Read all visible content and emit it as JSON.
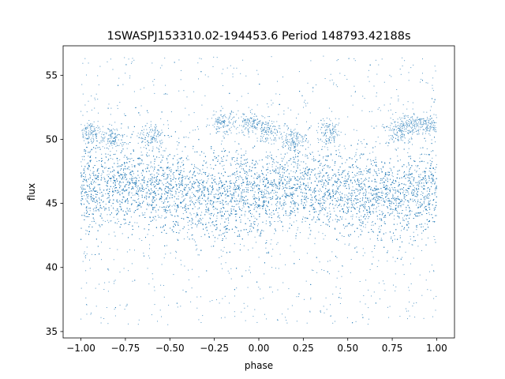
{
  "chart_data": {
    "type": "scatter",
    "title": "1SWASPJ153310.02-194453.6 Period 148793.42188s",
    "xlabel": "phase",
    "ylabel": "flux",
    "xlim": [
      -1.1,
      1.1
    ],
    "ylim": [
      34.5,
      57.3
    ],
    "x_ticks": [
      -1.0,
      -0.75,
      -0.5,
      -0.25,
      0.0,
      0.25,
      0.5,
      0.75,
      1.0
    ],
    "x_tick_labels": [
      "−1.00",
      "−0.75",
      "−0.50",
      "−0.25",
      "0.00",
      "0.25",
      "0.50",
      "0.75",
      "1.00"
    ],
    "y_ticks": [
      35,
      40,
      45,
      50,
      55
    ],
    "y_tick_labels": [
      "35",
      "40",
      "45",
      "50",
      "55"
    ],
    "grid": false,
    "legend": "none",
    "point_color": "#1f77b4",
    "series": [
      {
        "phase_range": [
          -1.0,
          1.0
        ],
        "flux_range": [
          35.5,
          56.5
        ],
        "mean_flux_profile": {
          "phase": [
            -1.0,
            -0.75,
            -0.5,
            -0.25,
            0.0,
            0.25,
            0.5,
            0.75,
            1.0
          ],
          "flux": [
            46.2,
            46.6,
            46.1,
            45.2,
            45.9,
            46.4,
            45.8,
            45.6,
            46.0
          ]
        },
        "core_spread": 1.6,
        "upper_clumps": [
          {
            "phase": -0.95,
            "flux": 50.6
          },
          {
            "phase": -0.82,
            "flux": 50.1
          },
          {
            "phase": -0.6,
            "flux": 50.2
          },
          {
            "phase": -0.2,
            "flux": 51.3
          },
          {
            "phase": -0.05,
            "flux": 51.2
          },
          {
            "phase": 0.05,
            "flux": 50.7
          },
          {
            "phase": 0.2,
            "flux": 50.0
          },
          {
            "phase": 0.4,
            "flux": 50.5
          },
          {
            "phase": 0.78,
            "flux": 50.6
          },
          {
            "phase": 0.85,
            "flux": 51.3
          },
          {
            "phase": 0.95,
            "flux": 51.1
          }
        ]
      }
    ]
  }
}
